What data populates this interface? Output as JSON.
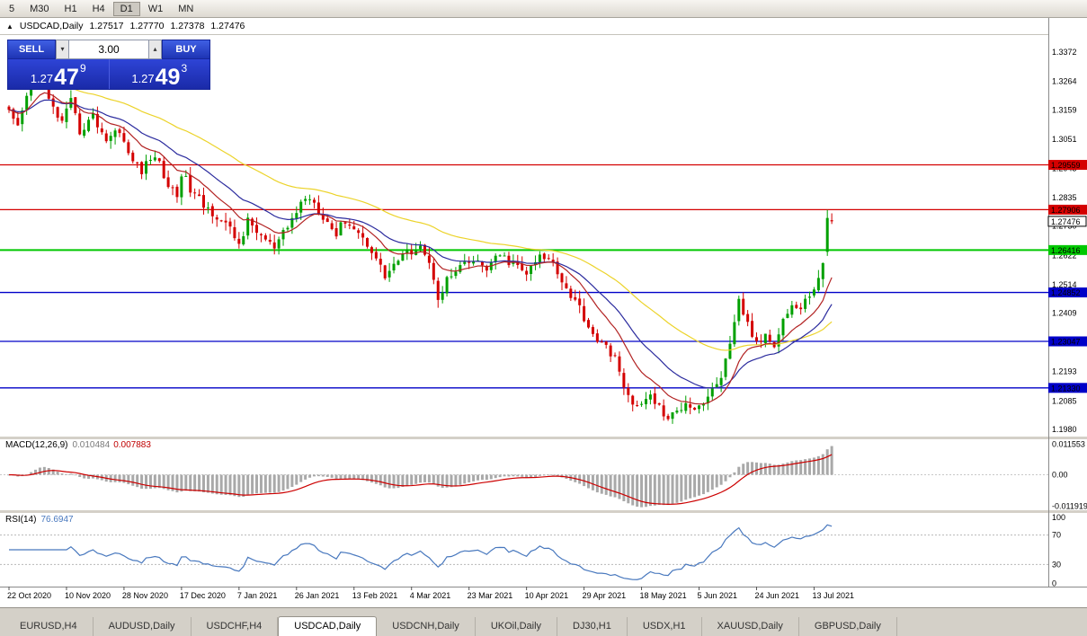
{
  "toolbar": {
    "timeframes": [
      "5",
      "M30",
      "H1",
      "H4",
      "D1",
      "W1",
      "MN"
    ],
    "active": "D1"
  },
  "chart_header": {
    "collapse_icon": "▲",
    "symbol": "USDCAD,Daily",
    "open": "1.27517",
    "high": "1.27770",
    "low": "1.27378",
    "close": "1.27476"
  },
  "trade_panel": {
    "sell_label": "SELL",
    "buy_label": "BUY",
    "volume": "3.00",
    "volume_down_icon": "▾",
    "volume_up_icon": "▴",
    "sell_price_prefix": "1.27",
    "sell_price_big": "47",
    "sell_price_sup": "9",
    "buy_price_prefix": "1.27",
    "buy_price_big": "49",
    "buy_price_sup": "3"
  },
  "chart_data": {
    "type": "candlestick",
    "symbol": "USDCAD",
    "timeframe": "Daily",
    "bars": 187,
    "current_quote": {
      "open": 1.27517,
      "high": 1.2777,
      "low": 1.27378,
      "close": 1.27476
    },
    "price_anchors": [
      [
        0,
        1.3145
      ],
      [
        2,
        1.3085
      ],
      [
        5,
        1.327
      ],
      [
        7,
        1.333
      ],
      [
        9,
        1.319
      ],
      [
        12,
        1.311
      ],
      [
        14,
        1.3185
      ],
      [
        16,
        1.308
      ],
      [
        19,
        1.3135
      ],
      [
        22,
        1.305
      ],
      [
        25,
        1.309
      ],
      [
        27,
        1.299
      ],
      [
        30,
        1.2935
      ],
      [
        33,
        1.2995
      ],
      [
        36,
        1.288
      ],
      [
        38,
        1.2845
      ],
      [
        39,
        1.293
      ],
      [
        41,
        1.2865
      ],
      [
        44,
        1.2805
      ],
      [
        47,
        1.277
      ],
      [
        50,
        1.2715
      ],
      [
        52,
        1.2665
      ],
      [
        54,
        1.2745
      ],
      [
        57,
        1.2695
      ],
      [
        60,
        1.2645
      ],
      [
        63,
        1.2725
      ],
      [
        66,
        1.2815
      ],
      [
        68,
        1.284
      ],
      [
        71,
        1.277
      ],
      [
        74,
        1.27
      ],
      [
        76,
        1.2755
      ],
      [
        79,
        1.2705
      ],
      [
        82,
        1.2645
      ],
      [
        85,
        1.2545
      ],
      [
        87,
        1.259
      ],
      [
        90,
        1.263
      ],
      [
        93,
        1.2665
      ],
      [
        96,
        1.2545
      ],
      [
        97,
        1.247
      ],
      [
        99,
        1.253
      ],
      [
        102,
        1.2575
      ],
      [
        105,
        1.26
      ],
      [
        108,
        1.2575
      ],
      [
        111,
        1.262
      ],
      [
        114,
        1.259
      ],
      [
        117,
        1.2555
      ],
      [
        120,
        1.2615
      ],
      [
        123,
        1.26
      ],
      [
        126,
        1.25
      ],
      [
        129,
        1.243
      ],
      [
        131,
        1.236
      ],
      [
        134,
        1.229
      ],
      [
        137,
        1.2255
      ],
      [
        139,
        1.212
      ],
      [
        141,
        1.2085
      ],
      [
        143,
        1.2065
      ],
      [
        145,
        1.2105
      ],
      [
        147,
        1.206
      ],
      [
        149,
        1.2015
      ],
      [
        151,
        1.2045
      ],
      [
        153,
        1.2085
      ],
      [
        155,
        1.206
      ],
      [
        157,
        1.208
      ],
      [
        159,
        1.212
      ],
      [
        161,
        1.218
      ],
      [
        163,
        1.228
      ],
      [
        165,
        1.245
      ],
      [
        167,
        1.237
      ],
      [
        169,
        1.229
      ],
      [
        171,
        1.233
      ],
      [
        173,
        1.23
      ],
      [
        175,
        1.2385
      ],
      [
        177,
        1.244
      ],
      [
        179,
        1.242
      ],
      [
        181,
        1.248
      ],
      [
        183,
        1.253
      ],
      [
        184,
        1.26
      ],
      [
        185,
        1.276
      ],
      [
        186,
        1.27476
      ]
    ],
    "wiggle": 0.0018,
    "last_bars": [
      {
        "o": 1.2635,
        "h": 1.279,
        "l": 1.262,
        "c": 1.276
      },
      {
        "o": 1.27517,
        "h": 1.2777,
        "l": 1.27378,
        "c": 1.27476
      }
    ],
    "moving_averages": [
      {
        "name": "slow-ma",
        "period": 55,
        "color": "#ecd32a"
      },
      {
        "name": "mid-ma",
        "period": 24,
        "color": "#2b2b9e"
      },
      {
        "name": "fast-ma",
        "period": 12,
        "color": "#b22222"
      }
    ],
    "candle_up_color": "#00a000",
    "candle_down_color": "#d40000",
    "levels": [
      {
        "price": 1.29559,
        "label": "1.29559",
        "color": "#d40000"
      },
      {
        "price": 1.27906,
        "label": "1.27906",
        "color": "#d40000"
      },
      {
        "price": 1.26416,
        "label": "1.26416",
        "color": "#00c800"
      },
      {
        "price": 1.24852,
        "label": "1.24852",
        "color": "#0000c8"
      },
      {
        "price": 1.23047,
        "label": "1.23047",
        "color": "#0000c8"
      },
      {
        "price": 1.2133,
        "label": "1.21330",
        "color": "#0000c8"
      }
    ],
    "current_price_label": "1.27476",
    "price_axis_labels": [
      "1.3372",
      "1.3264",
      "1.3159",
      "1.3051",
      "1.2943",
      "1.2835",
      "1.2730",
      "1.2622",
      "1.2514",
      "1.2409",
      "1.2301",
      "1.2193",
      "1.2085",
      "1.1980"
    ],
    "date_labels": [
      "22 Oct 2020",
      "10 Nov 2020",
      "28 Nov 2020",
      "17 Dec 2020",
      "7 Jan 2021",
      "26 Jan 2021",
      "13 Feb 2021",
      "4 Mar 2021",
      "23 Mar 2021",
      "10 Apr 2021",
      "29 Apr 2021",
      "18 May 2021",
      "5 Jun 2021",
      "24 Jun 2021",
      "13 Jul 2021"
    ],
    "indicators": {
      "macd": {
        "label": "MACD(12,26,9)",
        "params": [
          12,
          26,
          9
        ],
        "main_value": "0.010484",
        "signal_value": "0.007883",
        "axis_labels": [
          "0.011553",
          "0.00",
          "-0.011919"
        ],
        "histogram_color": "#a9a9a9",
        "signal_color": "#cc0000"
      },
      "rsi": {
        "label": "RSI(14)",
        "period": 14,
        "value": "76.6947",
        "axis_labels": [
          "100",
          "70",
          "30",
          "0"
        ],
        "levels": [
          70,
          30
        ],
        "line_color": "#4878be"
      }
    }
  },
  "tabs": [
    {
      "label": "EURUSD,H4",
      "active": false
    },
    {
      "label": "AUDUSD,Daily",
      "active": false
    },
    {
      "label": "USDCHF,H4",
      "active": false
    },
    {
      "label": "USDCAD,Daily",
      "active": true
    },
    {
      "label": "USDCNH,Daily",
      "active": false
    },
    {
      "label": "UKOil,Daily",
      "active": false
    },
    {
      "label": "DJ30,H1",
      "active": false
    },
    {
      "label": "USDX,H1",
      "active": false
    },
    {
      "label": "XAUUSD,Daily",
      "active": false
    },
    {
      "label": "GBPUSD,Daily",
      "active": false
    }
  ]
}
